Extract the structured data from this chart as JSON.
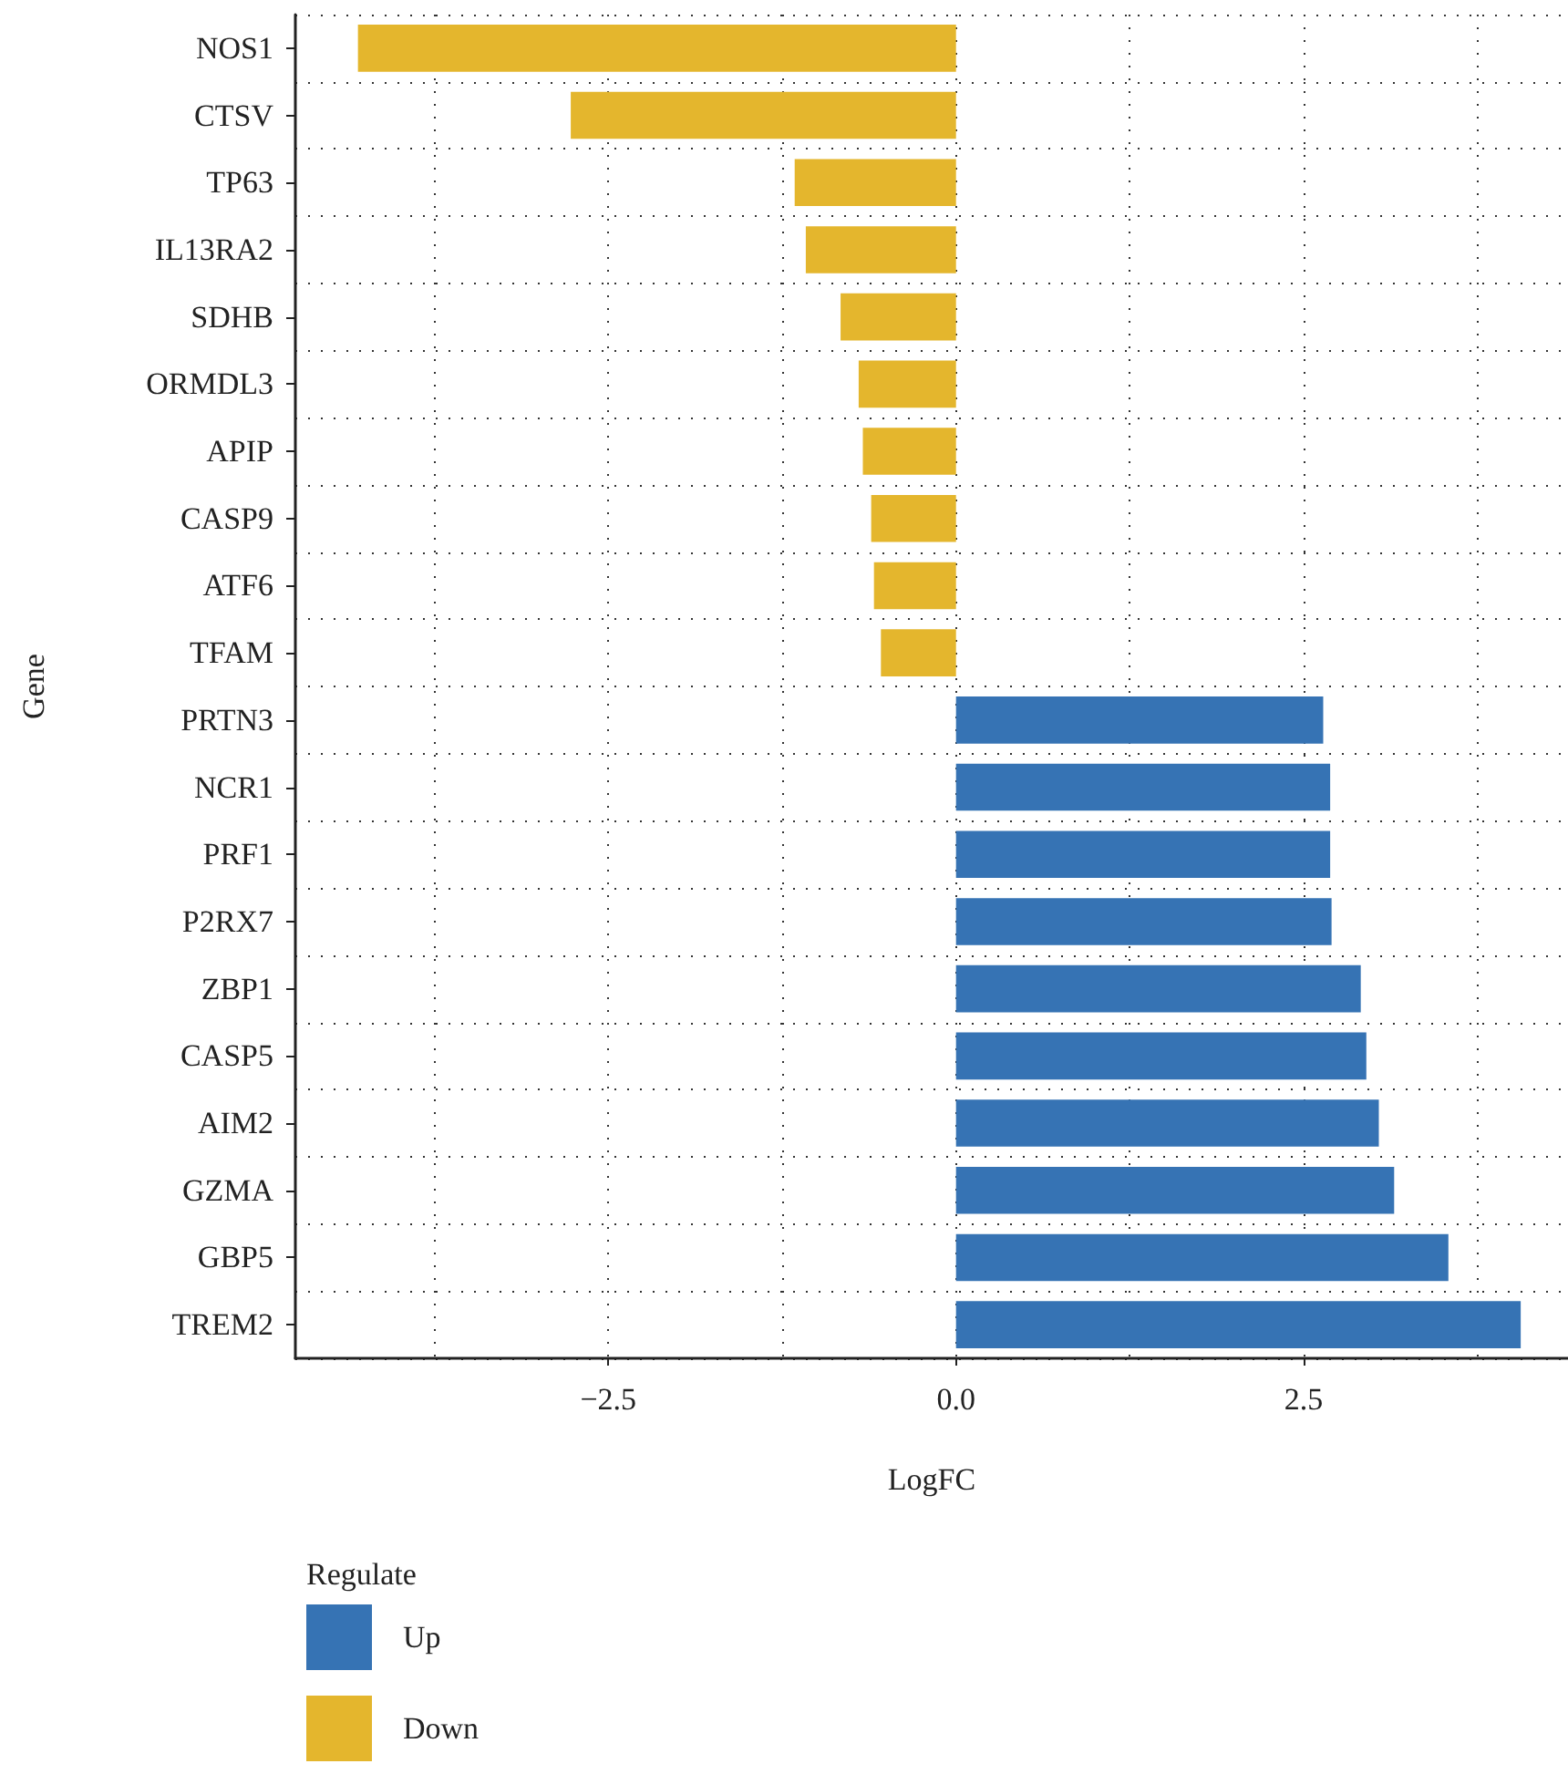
{
  "chart_data": {
    "type": "bar",
    "orientation": "horizontal",
    "xlabel": "LogFC",
    "ylabel": "Gene",
    "legend_title": "Regulate",
    "legend": "bottom left",
    "grid": true,
    "categories": [
      "NOS1",
      "CTSV",
      "TP63",
      "IL13RA2",
      "SDHB",
      "ORMDL3",
      "APIP",
      "CASP9",
      "ATF6",
      "TFAM",
      "PRTN3",
      "NCR1",
      "PRF1",
      "P2RX7",
      "ZBP1",
      "CASP5",
      "AIM2",
      "GZMA",
      "GBP5",
      "TREM2"
    ],
    "series": [
      {
        "name": "Up",
        "color": "#3673b4",
        "values": [
          null,
          null,
          null,
          null,
          null,
          null,
          null,
          null,
          null,
          null,
          2.64,
          2.69,
          2.69,
          2.7,
          2.91,
          2.95,
          3.04,
          3.15,
          3.54,
          4.06
        ]
      },
      {
        "name": "Down",
        "color": "#e4b62d",
        "values": [
          -4.3,
          -2.77,
          -1.16,
          -1.08,
          -0.83,
          -0.7,
          -0.67,
          -0.61,
          -0.59,
          -0.54,
          null,
          null,
          null,
          null,
          null,
          null,
          null,
          null,
          null,
          null
        ]
      }
    ],
    "xlim": [
      -4.75,
      4.4
    ],
    "xticks": [
      {
        "value": -2.5,
        "label": "−2.5"
      },
      {
        "value": 0,
        "label": "0.0"
      },
      {
        "value": 2.5,
        "label": "2.5"
      }
    ]
  }
}
